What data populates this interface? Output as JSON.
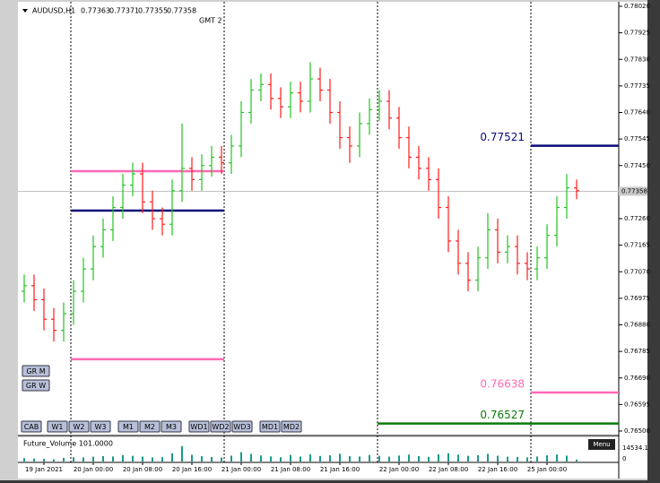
{
  "chart_data": {
    "type": "ohlc",
    "symbol": "AUDUSD,H1",
    "header_quote": [
      0.77363,
      0.77371,
      0.77355,
      0.77358
    ],
    "timezone": "GMT 2",
    "menu": "Menu",
    "up_color": "#22c422",
    "down_color": "#ff1a1a",
    "categories": [
      null,
      null,
      "19 Jan 2021",
      null,
      null,
      null,
      null,
      "20 Jan 00:00",
      null,
      null,
      null,
      null,
      "20 Jan 08:00",
      null,
      null,
      null,
      null,
      "20 Jan 16:00",
      null,
      null,
      null,
      null,
      "21 Jan 00:00",
      null,
      null,
      null,
      null,
      "21 Jan 08:00",
      null,
      null,
      null,
      null,
      "21 Jan 16:00",
      null,
      null,
      null,
      null,
      null,
      "22 Jan 00:00",
      null,
      null,
      null,
      null,
      "22 Jan 08:00",
      null,
      null,
      null,
      null,
      "22 Jan 16:00",
      null,
      null,
      null,
      null,
      "25 Jan 00:00",
      null,
      null,
      null
    ],
    "open": [
      0.77,
      0.7702,
      0.7697,
      0.769,
      0.7686,
      0.7692,
      0.77,
      0.7708,
      0.7716,
      0.7722,
      0.773,
      0.7738,
      0.7742,
      0.7732,
      0.7726,
      0.7724,
      0.7736,
      0.7744,
      0.774,
      0.7745,
      0.7748,
      0.7746,
      0.7752,
      0.7764,
      0.7772,
      0.7774,
      0.7769,
      0.7766,
      0.7771,
      0.7768,
      0.7776,
      0.7772,
      0.7764,
      0.7755,
      0.7752,
      0.776,
      0.7765,
      0.7768,
      0.7762,
      0.7755,
      0.7748,
      0.7744,
      0.774,
      0.773,
      0.7718,
      0.771,
      0.7704,
      0.7712,
      0.7722,
      0.7714,
      0.7716,
      0.771,
      0.7708,
      0.7712,
      0.772,
      0.773,
      0.7737
    ],
    "high": [
      0.7706,
      0.7706,
      0.7701,
      0.7694,
      0.7696,
      0.7704,
      0.7712,
      0.772,
      0.7726,
      0.7734,
      0.7742,
      0.7746,
      0.7746,
      0.7736,
      0.773,
      0.774,
      0.776,
      0.7748,
      0.7749,
      0.7752,
      0.7752,
      0.7756,
      0.7768,
      0.7776,
      0.7778,
      0.7778,
      0.7773,
      0.7775,
      0.7775,
      0.7782,
      0.778,
      0.7776,
      0.7768,
      0.7759,
      0.7764,
      0.7769,
      0.7772,
      0.7772,
      0.7766,
      0.7759,
      0.7752,
      0.7748,
      0.7744,
      0.7734,
      0.7722,
      0.7714,
      0.7716,
      0.7728,
      0.7726,
      0.772,
      0.772,
      0.7714,
      0.7716,
      0.7724,
      0.7734,
      0.7742,
      0.774
    ],
    "low": [
      0.7696,
      0.7693,
      0.7686,
      0.7682,
      0.7682,
      0.7688,
      0.7696,
      0.7704,
      0.7712,
      0.7718,
      0.7726,
      0.7734,
      0.7728,
      0.7722,
      0.772,
      0.772,
      0.7732,
      0.7736,
      0.7736,
      0.7741,
      0.7742,
      0.7742,
      0.7748,
      0.776,
      0.7768,
      0.7765,
      0.7762,
      0.7762,
      0.7764,
      0.7764,
      0.7768,
      0.776,
      0.7751,
      0.7746,
      0.7748,
      0.7756,
      0.7761,
      0.7758,
      0.7751,
      0.7744,
      0.774,
      0.7736,
      0.7726,
      0.7714,
      0.7706,
      0.77,
      0.77,
      0.7708,
      0.771,
      0.771,
      0.7706,
      0.7704,
      0.7704,
      0.7708,
      0.7716,
      0.7726,
      0.7733
    ],
    "close": [
      0.7702,
      0.7697,
      0.769,
      0.7686,
      0.7692,
      0.77,
      0.7708,
      0.7716,
      0.7722,
      0.773,
      0.7738,
      0.7742,
      0.7732,
      0.7726,
      0.7724,
      0.7736,
      0.7744,
      0.774,
      0.7745,
      0.7748,
      0.7746,
      0.7752,
      0.7764,
      0.7772,
      0.7774,
      0.7769,
      0.7766,
      0.7771,
      0.7768,
      0.7776,
      0.7772,
      0.7764,
      0.7755,
      0.7752,
      0.776,
      0.7765,
      0.7768,
      0.7762,
      0.7755,
      0.7748,
      0.7744,
      0.774,
      0.773,
      0.7718,
      0.771,
      0.7704,
      0.7712,
      0.7722,
      0.7714,
      0.7716,
      0.771,
      0.7708,
      0.7712,
      0.772,
      0.773,
      0.7737,
      0.7736
    ],
    "ylim": [
      0.765,
      0.7802
    ],
    "yticks": [
      {
        "value": 0.7802,
        "label": "0.78020"
      },
      {
        "value": 0.77925,
        "label": "0.77925"
      },
      {
        "value": 0.7783,
        "label": "0.77830"
      },
      {
        "value": 0.77735,
        "label": "0.77735"
      },
      {
        "value": 0.7764,
        "label": "0.77640"
      },
      {
        "value": 0.77545,
        "label": "0.77545"
      },
      {
        "value": 0.7745,
        "label": "0.77450"
      },
      {
        "value": 0.7726,
        "label": "0.77260"
      },
      {
        "value": 0.77165,
        "label": "0.77165"
      },
      {
        "value": 0.7707,
        "label": "0.77070"
      },
      {
        "value": 0.76975,
        "label": "0.76975"
      },
      {
        "value": 0.7688,
        "label": "0.76880"
      },
      {
        "value": 0.76785,
        "label": "0.76785"
      },
      {
        "value": 0.7669,
        "label": "0.76690"
      },
      {
        "value": 0.76595,
        "label": "0.76595"
      },
      {
        "value": 0.765,
        "label": "0.76500"
      }
    ],
    "last_price": 0.77358,
    "levels": [
      {
        "value": 0.7743,
        "color": "#ff69b4"
      },
      {
        "value": 0.77289,
        "color": "#0a0a78"
      },
      {
        "value": 0.76757,
        "color": "#ff69b4"
      },
      {
        "value": 0.77521,
        "color": "#0a0a78",
        "labeled": true
      },
      {
        "value": 0.76638,
        "color": "#ff69b4",
        "labeled": true
      },
      {
        "value": 0.76527,
        "color": "#0a7a0a",
        "labeled": true
      }
    ],
    "buttons_side": [
      "GR M",
      "GR W"
    ],
    "buttons": [
      "CAB",
      "W1",
      "W2",
      "W3",
      "M1",
      "M2",
      "M3",
      "WD1",
      "WD2",
      "WD3",
      "MD1",
      "MD2"
    ],
    "volume_title": "Future_Volume 101.0000",
    "volume_color": "#1a9a8a",
    "volume": [
      3200,
      2800,
      2500,
      2100,
      3400,
      4100,
      3900,
      4600,
      5200,
      4800,
      6100,
      5400,
      4700,
      3900,
      4200,
      7800,
      14534.1,
      6400,
      5100,
      4300,
      3800,
      5600,
      8900,
      7200,
      5800,
      4900,
      4100,
      6300,
      4700,
      6900,
      5300,
      5900,
      7400,
      5100,
      4800,
      6200,
      5300,
      4600,
      5700,
      6600,
      5200,
      4400,
      6800,
      7900,
      6500,
      5400,
      6000,
      7300,
      5500,
      4600,
      4300,
      3900,
      4800,
      5900,
      6700,
      5600,
      1800
    ],
    "volume_ylim": [
      0,
      14534.1
    ],
    "volume_yticks": [
      14534.1,
      0
    ]
  }
}
